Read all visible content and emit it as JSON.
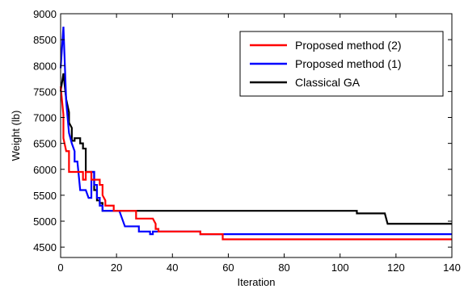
{
  "chart_data": {
    "type": "line",
    "title": "",
    "xlabel": "Iteration",
    "ylabel": "Weight (lb)",
    "xlim": [
      0,
      140
    ],
    "ylim": [
      4300,
      9000
    ],
    "xticks": [
      0,
      20,
      40,
      60,
      80,
      100,
      120,
      140
    ],
    "yticks": [
      4500,
      5000,
      5500,
      6000,
      6500,
      7000,
      7500,
      8000,
      8500,
      9000
    ],
    "grid": false,
    "legend_position": "top-right",
    "series": [
      {
        "name": "Classical GA",
        "color": "#000000",
        "points": [
          [
            0,
            7500
          ],
          [
            1,
            7850
          ],
          [
            2,
            7350
          ],
          [
            3,
            7100
          ],
          [
            3,
            6900
          ],
          [
            4,
            6800
          ],
          [
            4,
            6550
          ],
          [
            5,
            6550
          ],
          [
            5,
            6600
          ],
          [
            7,
            6600
          ],
          [
            7,
            6500
          ],
          [
            8,
            6500
          ],
          [
            8,
            6400
          ],
          [
            9,
            6400
          ],
          [
            9,
            5950
          ],
          [
            10,
            5950
          ],
          [
            12,
            5950
          ],
          [
            12,
            5600
          ],
          [
            13,
            5600
          ],
          [
            13,
            5400
          ],
          [
            14,
            5400
          ],
          [
            14,
            5350
          ],
          [
            15,
            5350
          ],
          [
            15,
            5200
          ],
          [
            25,
            5200
          ],
          [
            105,
            5200
          ],
          [
            106,
            5200
          ],
          [
            106,
            5150
          ],
          [
            116,
            5150
          ],
          [
            117,
            4950
          ],
          [
            140,
            4950
          ]
        ]
      },
      {
        "name": "Proposed method (1)",
        "color": "#0000ff",
        "points": [
          [
            0,
            7950
          ],
          [
            1,
            8750
          ],
          [
            2,
            7300
          ],
          [
            3,
            6700
          ],
          [
            4,
            6500
          ],
          [
            5,
            6350
          ],
          [
            5,
            6150
          ],
          [
            6,
            6150
          ],
          [
            7,
            5600
          ],
          [
            8,
            5600
          ],
          [
            9,
            5600
          ],
          [
            10,
            5450
          ],
          [
            11,
            5450
          ],
          [
            11,
            5950
          ],
          [
            12,
            5950
          ],
          [
            12,
            5700
          ],
          [
            13,
            5700
          ],
          [
            13,
            5450
          ],
          [
            14,
            5450
          ],
          [
            14,
            5300
          ],
          [
            15,
            5300
          ],
          [
            15,
            5200
          ],
          [
            21,
            5200
          ],
          [
            22,
            5050
          ],
          [
            23,
            4900
          ],
          [
            28,
            4900
          ],
          [
            28,
            4800
          ],
          [
            32,
            4800
          ],
          [
            32,
            4750
          ],
          [
            33,
            4750
          ],
          [
            33,
            4800
          ],
          [
            50,
            4800
          ],
          [
            50,
            4750
          ],
          [
            62,
            4750
          ],
          [
            70,
            4750
          ],
          [
            140,
            4750
          ]
        ]
      },
      {
        "name": "Proposed method (2)",
        "color": "#ff0000",
        "points": [
          [
            0,
            7600
          ],
          [
            1,
            7050
          ],
          [
            1,
            6600
          ],
          [
            2,
            6350
          ],
          [
            3,
            6350
          ],
          [
            3,
            5950
          ],
          [
            4,
            5950
          ],
          [
            8,
            5950
          ],
          [
            8,
            5800
          ],
          [
            9,
            5800
          ],
          [
            9,
            5950
          ],
          [
            11,
            5950
          ],
          [
            11,
            5800
          ],
          [
            14,
            5800
          ],
          [
            14,
            5700
          ],
          [
            15,
            5700
          ],
          [
            15,
            5500
          ],
          [
            16,
            5400
          ],
          [
            16,
            5300
          ],
          [
            19,
            5300
          ],
          [
            19,
            5200
          ],
          [
            26,
            5200
          ],
          [
            27,
            5200
          ],
          [
            27,
            5050
          ],
          [
            33,
            5050
          ],
          [
            34,
            4950
          ],
          [
            34,
            4850
          ],
          [
            35,
            4850
          ],
          [
            35,
            4800
          ],
          [
            50,
            4800
          ],
          [
            50,
            4750
          ],
          [
            58,
            4750
          ],
          [
            58,
            4650
          ],
          [
            62,
            4650
          ],
          [
            140,
            4650
          ]
        ]
      }
    ]
  }
}
